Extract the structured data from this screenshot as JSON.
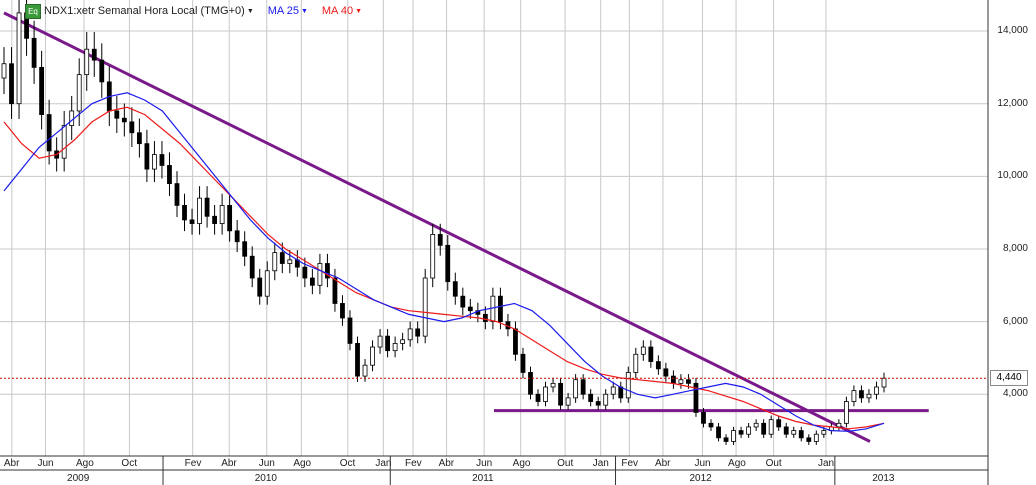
{
  "legend": {
    "badge": "Eq",
    "symbol": "NDX1:xetr Semanal Hora Local (TMG+0)",
    "ma25_label": "MA 25",
    "ma40_label": "MA 40",
    "ma25_color": "#1a1aee",
    "ma40_color": "#ee1a1a"
  },
  "last_price": "4,440",
  "chart_data": {
    "type": "candlestick",
    "title": "",
    "ylim": [
      2300,
      14800
    ],
    "y_ticks": [
      "14,000",
      "12,000",
      "10,000",
      "8,000",
      "6,000",
      "4,000"
    ],
    "y_tick_values": [
      14000,
      12000,
      10000,
      8000,
      6000,
      4000
    ],
    "x_ticks": [
      "Abr",
      "Jun",
      "Ago",
      "Oct",
      "Fev",
      "Abr",
      "Jun",
      "Ago",
      "Oct",
      "Jan",
      "Fev",
      "Abr",
      "Jun",
      "Ago",
      "Out",
      "Jan",
      "Fev",
      "Abr",
      "Jun",
      "Ago",
      "Out",
      "Jan"
    ],
    "x_tick_pos": [
      0.012,
      0.046,
      0.085,
      0.131,
      0.195,
      0.232,
      0.27,
      0.305,
      0.352,
      0.388,
      0.418,
      0.452,
      0.49,
      0.527,
      0.572,
      0.608,
      0.637,
      0.671,
      0.711,
      0.745,
      0.783,
      0.836
    ],
    "years": [
      "2009",
      "2010",
      "2011",
      "2012",
      "2013"
    ],
    "year_pos": [
      0.08,
      0.27,
      0.49,
      0.71,
      0.895
    ],
    "candles_close": [
      13100,
      12000,
      14500,
      13800,
      13000,
      11700,
      10700,
      10500,
      11400,
      11800,
      12800,
      13500,
      13200,
      12600,
      11800,
      11600,
      11500,
      11200,
      10900,
      10200,
      10600,
      10300,
      9800,
      9200,
      8800,
      8700,
      9400,
      8900,
      8700,
      9200,
      8500,
      8200,
      7800,
      7200,
      6700,
      7400,
      7900,
      7600,
      7700,
      7500,
      7200,
      7000,
      7600,
      7200,
      6500,
      6100,
      5400,
      4500,
      4800,
      5300,
      5600,
      5200,
      5400,
      5500,
      5800,
      5600,
      7200,
      8400,
      8100,
      7100,
      6700,
      6400,
      6300,
      6200,
      6000,
      6700,
      6000,
      5800,
      5100,
      4600,
      4000,
      3800,
      4200,
      4300,
      3700,
      3900,
      4400,
      4000,
      3800,
      3700,
      4000,
      4200,
      3900,
      4600,
      5100,
      5300,
      4900,
      4700,
      4500,
      4300,
      4400,
      4300,
      3500,
      3200,
      3100,
      2800,
      2700,
      3000,
      2900,
      3100,
      3200,
      2900,
      3300,
      3100,
      2900,
      3000,
      2800,
      2700,
      2900,
      3000,
      3100,
      3200,
      3800,
      4100,
      3900,
      4000,
      4200,
      4440
    ],
    "series": [
      {
        "name": "MA 25",
        "values": [
          9600,
          10200,
          10800,
          11200,
          11600,
          12000,
          12200,
          12300,
          12100,
          11800,
          11200,
          10600,
          10000,
          9400,
          8800,
          8300,
          7900,
          7600,
          7400,
          7200,
          6900,
          6600,
          6400,
          6200,
          6100,
          6000,
          6100,
          6300,
          6400,
          6500,
          6300,
          5900,
          5400,
          4900,
          4500,
          4200,
          4000,
          3900,
          4000,
          4100,
          4200,
          4300,
          4200,
          4000,
          3700,
          3400,
          3150,
          3000,
          2980,
          3050,
          3200
        ]
      },
      {
        "name": "MA 40",
        "values": [
          11500,
          10900,
          10500,
          10600,
          11000,
          11500,
          11800,
          11900,
          11700,
          11300,
          10900,
          10400,
          9900,
          9400,
          8900,
          8400,
          8000,
          7700,
          7400,
          7100,
          6800,
          6600,
          6400,
          6300,
          6250,
          6200,
          6150,
          6100,
          6000,
          5800,
          5500,
          5200,
          4900,
          4700,
          4550,
          4450,
          4400,
          4350,
          4300,
          4200,
          4100,
          3950,
          3800,
          3600,
          3400,
          3250,
          3150,
          3100,
          3050,
          3100,
          3200
        ]
      }
    ],
    "annotations": {
      "downtrend": {
        "from": [
          0,
          14500
        ],
        "to": [
          1,
          2700
        ]
      },
      "support": {
        "value": 3550,
        "from": 0.5,
        "to": 0.94
      },
      "last_price_line": 4440
    }
  }
}
